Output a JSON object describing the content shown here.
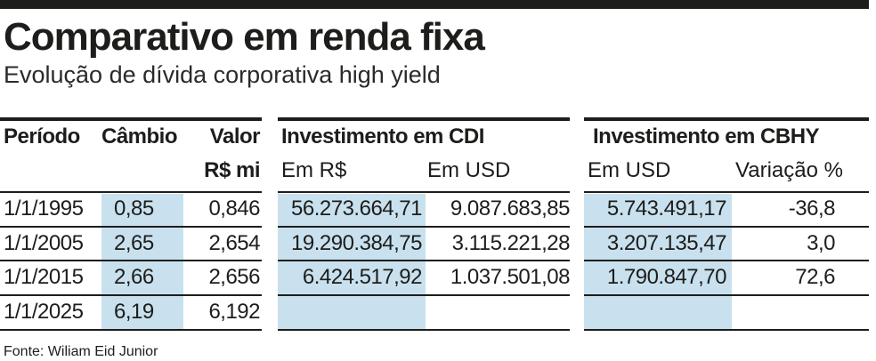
{
  "title": "Comparativo em renda fixa",
  "subtitle": "Evolução de dívida corporativa high yield",
  "table": {
    "headers": {
      "periodo": "Período",
      "cambio": "Câmbio",
      "valor": "Valor",
      "valor_unit": "R$ mi",
      "cdi_group": "Investimento em CDI",
      "cdi_brl": "Em R$",
      "cdi_usd": "Em USD",
      "cbhy_group": "Investimento em CBHY",
      "cbhy_usd": "Em USD",
      "cbhy_var": "Variação %"
    },
    "rows": [
      {
        "periodo": "1/1/1995",
        "cambio": "0,85",
        "valor": "0,846",
        "cdi_brl": "56.273.664,71",
        "cdi_usd": "9.087.683,85",
        "cbhy_usd": "5.743.491,17",
        "cbhy_var": "-36,8"
      },
      {
        "periodo": "1/1/2005",
        "cambio": "2,65",
        "valor": "2,654",
        "cdi_brl": "19.290.384,75",
        "cdi_usd": "3.115.221,28",
        "cbhy_usd": "3.207.135,47",
        "cbhy_var": "3,0"
      },
      {
        "periodo": "1/1/2015",
        "cambio": "2,66",
        "valor": "2,656",
        "cdi_brl": "6.424.517,92",
        "cdi_usd": "1.037.501,08",
        "cbhy_usd": "1.790.847,70",
        "cbhy_var": "72,6"
      },
      {
        "periodo": "1/1/2025",
        "cambio": "6,19",
        "valor": "6,192",
        "cdi_brl": "",
        "cdi_usd": "",
        "cbhy_usd": "",
        "cbhy_var": ""
      }
    ]
  },
  "source": "Fonte: Wiliam Eid Junior",
  "colors": {
    "highlight": "#c9e1ee",
    "ink": "#1d1d1b"
  }
}
